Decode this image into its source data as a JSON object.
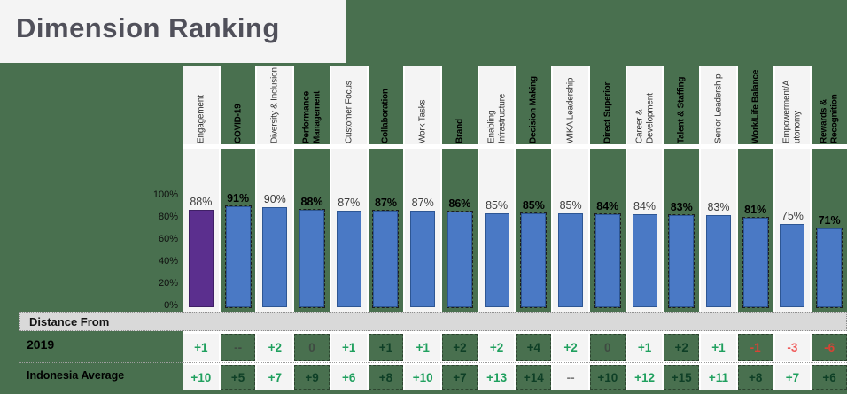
{
  "title": "Dimension Ranking",
  "colors": {
    "background_green": "#49704f",
    "column_light": "#f4f4f4",
    "bar_blue": "#4a79c5",
    "bar_blue_border": "#2d5694",
    "bar_purple_first": "#5b2f8e",
    "bar_purple_border": "#3f2066",
    "positive_green_on_light": "#1fa05e",
    "positive_green_on_dark": "#0e3f26",
    "negative_red_on_light": "#f05c5c",
    "negative_red_on_dark": "#d84335",
    "neutral_gray_on_light": "#7d7d7d",
    "neutral_gray_on_dark": "#3f4a42",
    "band_gray": "#d9d9d9"
  },
  "chart_data": {
    "type": "bar",
    "title": "Dimension Ranking",
    "xlabel": "",
    "ylabel": "",
    "ylim": [
      0,
      100
    ],
    "yticks": [
      "100%",
      "80%",
      "60%",
      "40%",
      "20%",
      "0%"
    ],
    "grid": false,
    "legend": "none",
    "categories": [
      "Engagement",
      "COVID-19",
      "Diversity & Inclusion",
      "Performance Management",
      "Customer Focus",
      "Collaboration",
      "Work Tasks",
      "Brand",
      "Enabling Infrastructure",
      "Decision Making",
      "WIKA Leadership",
      "Direct Superior",
      "Career & Development",
      "Talent & Staffing",
      "Senior Leadersh p",
      "Work/Life Balance",
      "Empowerment/A utonomy",
      "Rewards & Recognition"
    ],
    "values": [
      88,
      91,
      90,
      88,
      87,
      87,
      87,
      86,
      85,
      85,
      85,
      84,
      84,
      83,
      83,
      81,
      75,
      71
    ],
    "value_labels": [
      "88%",
      "91%",
      "90%",
      "88%",
      "87%",
      "87%",
      "87%",
      "86%",
      "85%",
      "85%",
      "85%",
      "84%",
      "84%",
      "83%",
      "83%",
      "81%",
      "75%",
      "71%"
    ],
    "highlighted_first_bar": "Engagement"
  },
  "table": {
    "header": "Distance From",
    "rows": [
      {
        "label": "2019",
        "values": [
          "+1",
          "--",
          "+2",
          "0",
          "+1",
          "+1",
          "+1",
          "+2",
          "+2",
          "+4",
          "+2",
          "0",
          "+1",
          "+2",
          "+1",
          "-1",
          "-3",
          "-6"
        ]
      },
      {
        "label": "Indonesia Average",
        "values": [
          "+10",
          "+5",
          "+7",
          "+9",
          "+6",
          "+8",
          "+10",
          "+7",
          "+13",
          "+14",
          "--",
          "+10",
          "+12",
          "+15",
          "+11",
          "+8",
          "+7",
          "+6"
        ]
      }
    ]
  }
}
